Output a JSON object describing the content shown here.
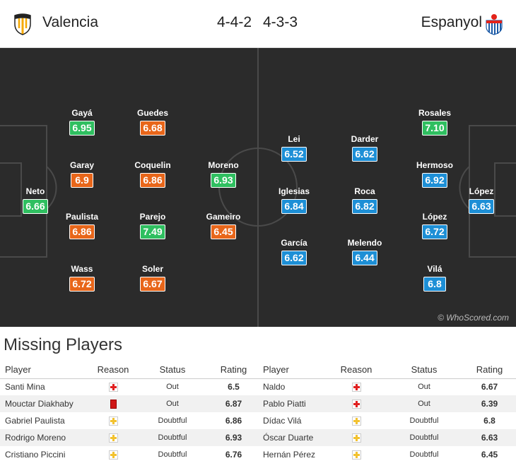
{
  "header": {
    "home_team": "Valencia",
    "home_formation": "4-4-2",
    "away_formation": "4-3-3",
    "away_team": "Espanyol"
  },
  "home_players": [
    {
      "name": "Neto",
      "rating": "6.66",
      "color": "green"
    },
    {
      "name": "Gayá",
      "rating": "6.95",
      "color": "green"
    },
    {
      "name": "Garay",
      "rating": "6.9",
      "color": "orange"
    },
    {
      "name": "Paulista",
      "rating": "6.86",
      "color": "orange"
    },
    {
      "name": "Wass",
      "rating": "6.72",
      "color": "orange"
    },
    {
      "name": "Guedes",
      "rating": "6.68",
      "color": "orange"
    },
    {
      "name": "Coquelin",
      "rating": "6.86",
      "color": "orange"
    },
    {
      "name": "Parejo",
      "rating": "7.49",
      "color": "green"
    },
    {
      "name": "Soler",
      "rating": "6.67",
      "color": "orange"
    },
    {
      "name": "Moreno",
      "rating": "6.93",
      "color": "green"
    },
    {
      "name": "Gameiro",
      "rating": "6.45",
      "color": "orange"
    }
  ],
  "away_players": [
    {
      "name": "Lei",
      "rating": "6.52"
    },
    {
      "name": "Iglesias",
      "rating": "6.84"
    },
    {
      "name": "García",
      "rating": "6.62"
    },
    {
      "name": "Darder",
      "rating": "6.62"
    },
    {
      "name": "Roca",
      "rating": "6.82"
    },
    {
      "name": "Melendo",
      "rating": "6.44"
    },
    {
      "name": "Rosales",
      "rating": "7.10",
      "color": "green"
    },
    {
      "name": "Hermoso",
      "rating": "6.92"
    },
    {
      "name": "López",
      "rating": "6.72"
    },
    {
      "name": "Vilá",
      "rating": "6.8"
    },
    {
      "name": "López",
      "rating": "6.63"
    }
  ],
  "watermark": "© WhoScored.com",
  "missing": {
    "title": "Missing Players",
    "columns": {
      "player": "Player",
      "reason": "Reason",
      "status": "Status",
      "rating": "Rating"
    },
    "home": [
      {
        "player": "Santi Mina",
        "reason": "injury-icon",
        "status": "Out",
        "rating": "6.5"
      },
      {
        "player": "Mouctar Diakhaby",
        "reason": "red-card-icon",
        "status": "Out",
        "rating": "6.87"
      },
      {
        "player": "Gabriel Paulista",
        "reason": "doubtful-icon",
        "status": "Doubtful",
        "rating": "6.86"
      },
      {
        "player": "Rodrigo Moreno",
        "reason": "doubtful-icon",
        "status": "Doubtful",
        "rating": "6.93"
      },
      {
        "player": "Cristiano Piccini",
        "reason": "doubtful-icon",
        "status": "Doubtful",
        "rating": "6.76"
      }
    ],
    "away": [
      {
        "player": "Naldo",
        "reason": "injury-icon",
        "status": "Out",
        "rating": "6.67"
      },
      {
        "player": "Pablo Piatti",
        "reason": "injury-icon",
        "status": "Out",
        "rating": "6.39"
      },
      {
        "player": "Dídac Vilá",
        "reason": "doubtful-icon",
        "status": "Doubtful",
        "rating": "6.8"
      },
      {
        "player": "Óscar Duarte",
        "reason": "doubtful-icon",
        "status": "Doubtful",
        "rating": "6.63"
      },
      {
        "player": "Hernán Pérez",
        "reason": "doubtful-icon",
        "status": "Doubtful",
        "rating": "6.45"
      }
    ]
  },
  "colors": {
    "pitch": "#2b2b2b",
    "rating_orange": "#e8661a",
    "rating_green": "#2fbf60",
    "rating_blue": "#1d8fd6",
    "table_rating": "#c8631c"
  }
}
